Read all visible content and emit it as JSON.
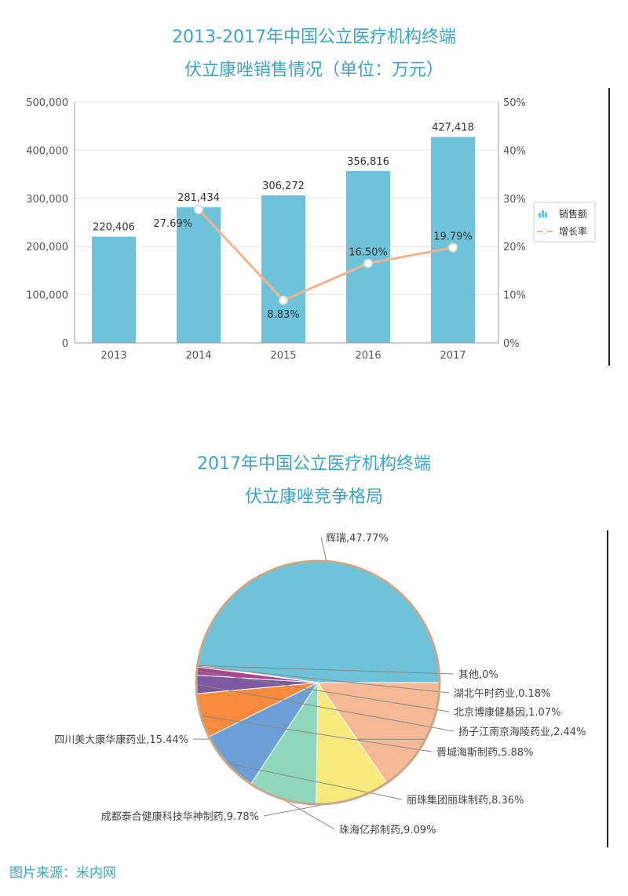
{
  "chart_data": [
    {
      "type": "bar+line",
      "title": "2013-2017年中国公立医疗机构终端",
      "subtitle": "伏立康唑销售情况（单位：万元）",
      "categories": [
        "2013",
        "2014",
        "2015",
        "2016",
        "2017"
      ],
      "series": [
        {
          "name": "销售额",
          "type": "bar",
          "axis": "left",
          "values": [
            220406,
            281434,
            306272,
            356816,
            427418
          ],
          "labels": [
            "220,406",
            "281,434",
            "306,272",
            "356,816",
            "427,418"
          ],
          "color": "#6ec3da"
        },
        {
          "name": "增长率",
          "type": "line",
          "axis": "right",
          "values": [
            null,
            27.69,
            8.83,
            16.5,
            19.79
          ],
          "labels": [
            "",
            "27.69%",
            "8.83%",
            "16.50%",
            "19.79%"
          ],
          "color": "#f2b48e"
        }
      ],
      "left_axis": {
        "ylim": [
          0,
          500000
        ],
        "ticks": [
          "0",
          "100,000",
          "200,000",
          "300,000",
          "400,000",
          "500,000"
        ]
      },
      "right_axis": {
        "ylim": [
          0,
          50
        ],
        "ticks": [
          "0%",
          "10%",
          "20%",
          "30%",
          "40%",
          "50%"
        ]
      },
      "grid": true,
      "legend": "right"
    },
    {
      "type": "pie",
      "title": "2017年中国公立医疗机构终端",
      "subtitle": "伏立康唑竞争格局",
      "slices": [
        {
          "label": "辉瑞,47.77%",
          "value": 47.77,
          "color": "#6ec3da"
        },
        {
          "label": "四川美大康华康药业,15.44%",
          "value": 15.44,
          "color": "#f5b995"
        },
        {
          "label": "成都泰合健康科技华神制药,9.78%",
          "value": 9.78,
          "color": "#f6ea7c"
        },
        {
          "label": "珠海亿邦制药,9.09%",
          "value": 9.09,
          "color": "#8fd8bd"
        },
        {
          "label": "丽珠集团丽珠制药,8.36%",
          "value": 8.36,
          "color": "#6b9fd6"
        },
        {
          "label": "晋城海斯制药,5.88%",
          "value": 5.88,
          "color": "#f78a3c"
        },
        {
          "label": "扬子江南京海陵药业,2.44%",
          "value": 2.44,
          "color": "#7b5aa2"
        },
        {
          "label": "北京博康健基因,1.07%",
          "value": 1.07,
          "color": "#a8448e"
        },
        {
          "label": "湖北午时药业,0.18%",
          "value": 0.18,
          "color": "#d6403a"
        },
        {
          "label": "其他,0%",
          "value": 0,
          "color": "#cccccc"
        }
      ]
    }
  ],
  "source": "图片来源：米内网"
}
